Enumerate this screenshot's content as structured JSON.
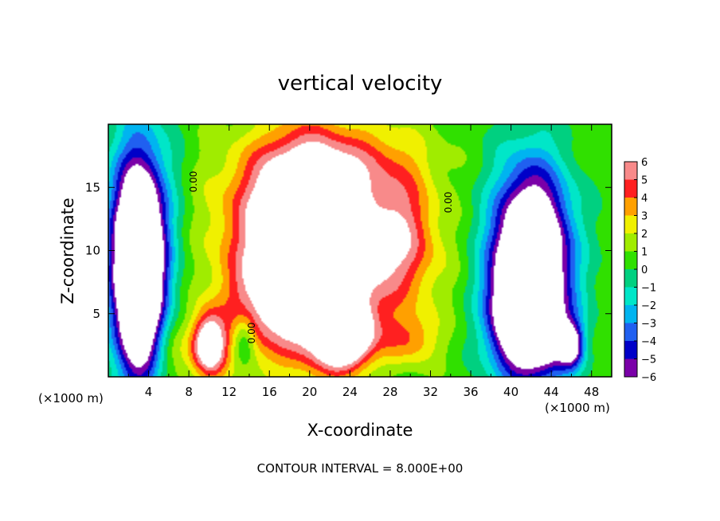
{
  "chart_data": {
    "type": "heatmap",
    "title": "vertical velocity",
    "xlabel": "X-coordinate",
    "ylabel": "Z-coordinate",
    "x_unit_label": "(×1000 m)",
    "footer": "CONTOUR INTERVAL = 8.000E+00",
    "xlim": [
      0,
      50
    ],
    "ylim": [
      0,
      20
    ],
    "x_ticks": [
      "4",
      "8",
      "12",
      "16",
      "20",
      "24",
      "28",
      "32",
      "36",
      "40",
      "44",
      "48"
    ],
    "x_tick_values": [
      4,
      8,
      12,
      16,
      20,
      24,
      28,
      32,
      36,
      40,
      44,
      48
    ],
    "y_ticks": [
      "5",
      "10",
      "15"
    ],
    "y_tick_values": [
      5,
      10,
      15
    ],
    "colorbar": {
      "min": -6,
      "max": 6,
      "labels": [
        "6",
        "5",
        "4",
        "3",
        "2",
        "1",
        "0",
        "−1",
        "−2",
        "−3",
        "−4",
        "−5",
        "−6"
      ],
      "label_values": [
        6,
        5,
        4,
        3,
        2,
        1,
        0,
        -1,
        -2,
        -3,
        -4,
        -5,
        -6
      ]
    },
    "zero_contour_labels": [
      "0.00",
      "0.00",
      "0.00"
    ],
    "features": [
      {
        "x": 3.0,
        "z": 8.0,
        "sx": 1.6,
        "sz": 5.5,
        "a": -14
      },
      {
        "x": 3.2,
        "z": 11.5,
        "sx": 2.5,
        "sz": 6.0,
        "a": -4
      },
      {
        "x": 42.0,
        "z": 9.0,
        "sx": 2.6,
        "sz": 5.0,
        "a": -14
      },
      {
        "x": 40.5,
        "z": 4.5,
        "sx": 2.0,
        "sz": 3.0,
        "a": -6
      },
      {
        "x": 44.0,
        "z": 2.8,
        "sx": 1.8,
        "sz": 2.0,
        "a": -4
      },
      {
        "x": 46.0,
        "z": 2.5,
        "sx": 0.8,
        "sz": 1.2,
        "a": -6
      },
      {
        "x": 19.5,
        "z": 10.0,
        "sx": 3.5,
        "sz": 5.0,
        "a": 14
      },
      {
        "x": 23.5,
        "z": 3.2,
        "sx": 2.0,
        "sz": 1.8,
        "a": 9
      },
      {
        "x": 10.0,
        "z": 2.5,
        "sx": 1.2,
        "sz": 1.8,
        "a": 8
      },
      {
        "x": 20.0,
        "z": 15.5,
        "sx": 5.5,
        "sz": 3.0,
        "a": 3
      },
      {
        "x": 29.0,
        "z": 11.5,
        "sx": 2.5,
        "sz": 3.0,
        "a": 4
      },
      {
        "x": 26.0,
        "z": 8.0,
        "sx": 4.5,
        "sz": 3.0,
        "a": 3
      },
      {
        "x": 14.0,
        "z": 5.0,
        "sx": 2.0,
        "sz": 3.0,
        "a": 2
      },
      {
        "x": 30.0,
        "z": 3.0,
        "sx": 2.0,
        "sz": 1.5,
        "a": 3
      },
      {
        "x": 13.5,
        "z": 3.0,
        "sx": 0.8,
        "sz": 1.5,
        "a": -3
      },
      {
        "x": 12.0,
        "z": 10.0,
        "sx": 3.0,
        "sz": 5.0,
        "a": 1.5
      },
      {
        "x": 27.0,
        "z": 17.0,
        "sx": 4.0,
        "sz": 2.5,
        "a": 2
      },
      {
        "x": 6.0,
        "z": 2.0,
        "sx": 1.5,
        "sz": 2.0,
        "a": 1.5
      }
    ]
  }
}
